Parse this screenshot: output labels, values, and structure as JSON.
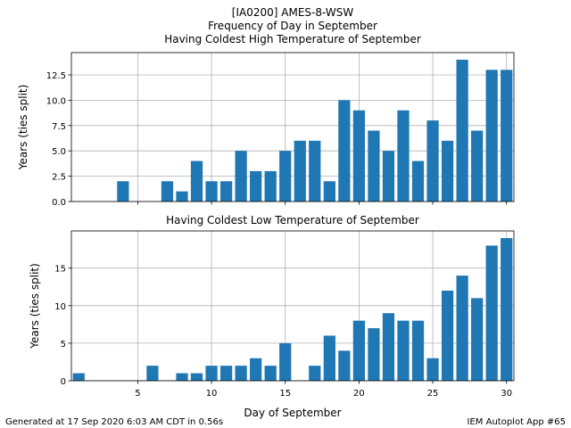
{
  "title_lines": [
    "[IA0200] AMES-8-WSW",
    "Frequency of Day in September"
  ],
  "footer_left": "Generated at 17 Sep 2020 6:03 AM CDT in 0.56s",
  "footer_right": "IEM Autoplot App #65",
  "bar_color": "#1f77b4",
  "chart_data": [
    {
      "type": "bar",
      "title": "Having Coldest High Temperature of September",
      "xlabel": "",
      "ylabel": "Years (ties split)",
      "xlim": [
        0.5,
        30.5
      ],
      "ylim": [
        0,
        14.7
      ],
      "xticks": [
        5,
        10,
        15,
        20,
        25,
        30
      ],
      "yticks": [
        0.0,
        2.5,
        5.0,
        7.5,
        10.0,
        12.5
      ],
      "ytick_labels": [
        "0.0",
        "2.5",
        "5.0",
        "7.5",
        "10.0",
        "12.5"
      ],
      "grid": true,
      "x": [
        1,
        2,
        3,
        4,
        5,
        6,
        7,
        8,
        9,
        10,
        11,
        12,
        13,
        14,
        15,
        16,
        17,
        18,
        19,
        20,
        21,
        22,
        23,
        24,
        25,
        26,
        27,
        28,
        29,
        30
      ],
      "values": [
        0,
        0,
        0,
        2,
        0,
        0,
        2,
        1,
        4,
        2,
        2,
        5,
        3,
        3,
        5,
        6,
        6,
        2,
        10,
        9,
        7,
        5,
        9,
        4,
        8,
        6,
        14,
        7,
        13,
        13
      ]
    },
    {
      "type": "bar",
      "title": "Having Coldest Low Temperature of September",
      "xlabel": "Day of September",
      "ylabel": "Years (ties split)",
      "xlim": [
        0.5,
        30.5
      ],
      "ylim": [
        0,
        19.95
      ],
      "xticks": [
        5,
        10,
        15,
        20,
        25,
        30
      ],
      "yticks": [
        0,
        5,
        10,
        15
      ],
      "ytick_labels": [
        "0",
        "5",
        "10",
        "15"
      ],
      "xtick_labels": [
        "5",
        "10",
        "15",
        "20",
        "25",
        "30"
      ],
      "grid": true,
      "x": [
        1,
        2,
        3,
        4,
        5,
        6,
        7,
        8,
        9,
        10,
        11,
        12,
        13,
        14,
        15,
        16,
        17,
        18,
        19,
        20,
        21,
        22,
        23,
        24,
        25,
        26,
        27,
        28,
        29,
        30
      ],
      "values": [
        1,
        0,
        0,
        0,
        0,
        2,
        0,
        1,
        1,
        2,
        2,
        2,
        3,
        2,
        5,
        0,
        2,
        6,
        4,
        8,
        7,
        9,
        8,
        8,
        3,
        12,
        14,
        11,
        18,
        19
      ]
    }
  ]
}
